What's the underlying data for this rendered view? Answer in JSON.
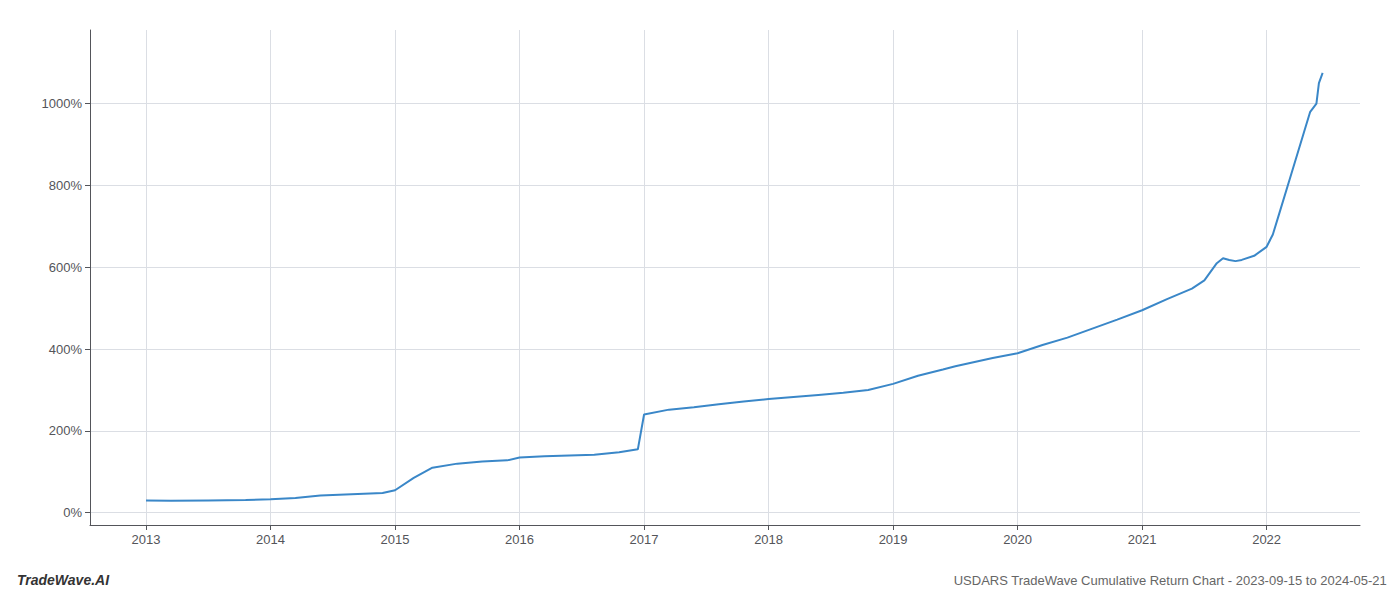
{
  "chart_data": {
    "type": "line",
    "title": "USDARS TradeWave Cumulative Return Chart - 2023-09-15 to 2024-05-21",
    "annotations": [
      "TradeWave.AI"
    ],
    "x": [
      2013.0,
      2013.2,
      2013.5,
      2013.8,
      2014.0,
      2014.2,
      2014.4,
      2014.7,
      2014.9,
      2015.0,
      2015.15,
      2015.3,
      2015.5,
      2015.7,
      2015.9,
      2016.0,
      2016.2,
      2016.4,
      2016.6,
      2016.8,
      2016.95,
      2017.0,
      2017.2,
      2017.4,
      2017.6,
      2017.8,
      2018.0,
      2018.2,
      2018.4,
      2018.6,
      2018.8,
      2019.0,
      2019.2,
      2019.4,
      2019.5,
      2019.6,
      2019.8,
      2020.0,
      2020.2,
      2020.4,
      2020.6,
      2020.8,
      2021.0,
      2021.2,
      2021.4,
      2021.5,
      2021.6,
      2021.65,
      2021.7,
      2021.75,
      2021.8,
      2021.9,
      2022.0,
      2022.05,
      2022.1,
      2022.2,
      2022.3,
      2022.35,
      2022.4,
      2022.42,
      2022.45
    ],
    "values": [
      30,
      29,
      30,
      31,
      33,
      36,
      42,
      46,
      48,
      55,
      85,
      110,
      120,
      125,
      128,
      135,
      138,
      140,
      142,
      148,
      155,
      240,
      252,
      258,
      265,
      272,
      278,
      283,
      288,
      293,
      300,
      315,
      335,
      350,
      358,
      365,
      378,
      390,
      410,
      428,
      450,
      472,
      495,
      522,
      548,
      568,
      610,
      622,
      618,
      615,
      618,
      628,
      650,
      680,
      730,
      830,
      930,
      980,
      1000,
      1050,
      1075
    ],
    "color": "#3a87c8",
    "xlim": [
      2012.55,
      2022.75
    ],
    "xticks": [
      2013,
      2014,
      2015,
      2016,
      2017,
      2018,
      2019,
      2020,
      2021,
      2022
    ],
    "ylim": [
      -30,
      1180
    ],
    "yticks": [
      {
        "value": 0,
        "label": "0%"
      },
      {
        "value": 200,
        "label": "200%"
      },
      {
        "value": 400,
        "label": "400%"
      },
      {
        "value": 600,
        "label": "600%"
      },
      {
        "value": 800,
        "label": "800%"
      },
      {
        "value": 1000,
        "label": "1000%"
      }
    ],
    "grid": true
  }
}
